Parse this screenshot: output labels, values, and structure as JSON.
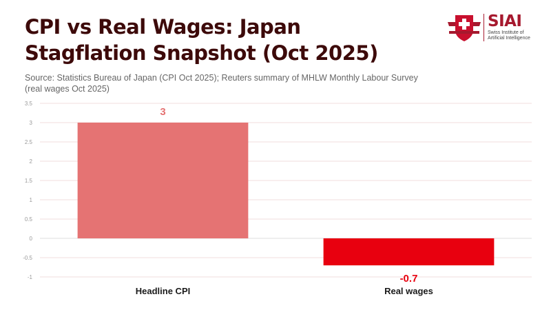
{
  "header": {
    "title": "CPI vs Real Wages: Japan Stagflation Snapshot (Oct 2025)",
    "subtitle": "Source: Statistics Bureau of Japan (CPI Oct 2025); Reuters summary of MHLW Monthly Labour Survey (real wages Oct 2025)"
  },
  "logo": {
    "name": "SIAI",
    "full_name_line1": "Swiss Institute of",
    "full_name_line2": "Artificial Intelligence",
    "brand_color": "#a6192e",
    "icon": "swiss-cross-shield-icon"
  },
  "chart_data": {
    "type": "bar",
    "categories": [
      "Headline CPI",
      "Real wages"
    ],
    "values": [
      3,
      -0.7
    ],
    "data_labels": [
      "3",
      "-0.7"
    ],
    "colors": [
      "#e57373",
      "#e8000f"
    ],
    "label_colors": [
      "#e57373",
      "#e8000f"
    ],
    "ylim": [
      -1,
      3.5
    ],
    "yticks": [
      "-1",
      "-0.5",
      "0",
      "0.5",
      "1",
      "1.5",
      "2",
      "2.5",
      "3",
      "3.5"
    ],
    "ytick_values": [
      -1,
      -0.5,
      0,
      0.5,
      1,
      1.5,
      2,
      2.5,
      3,
      3.5
    ],
    "grid": true,
    "xlabel": "",
    "ylabel": ""
  }
}
